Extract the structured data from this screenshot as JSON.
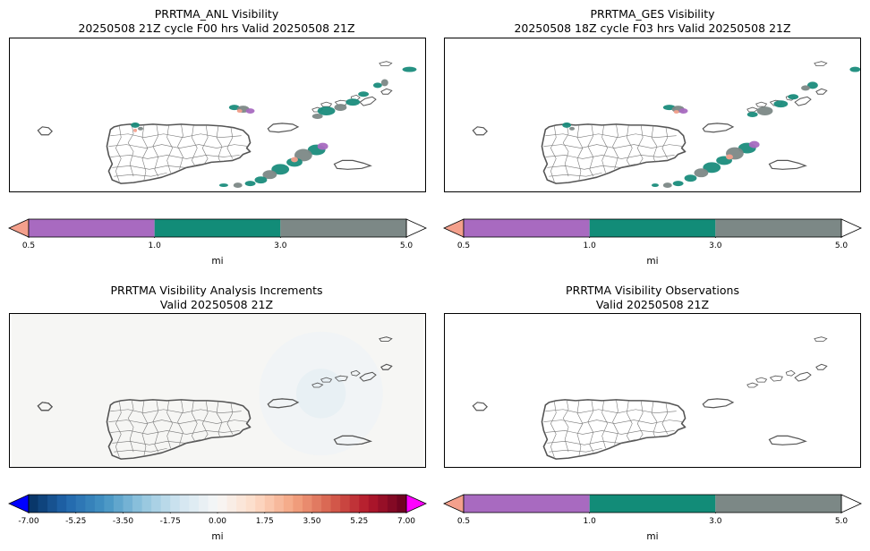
{
  "panels": [
    {
      "title_line1": "PRRTMA_ANL Visibility",
      "title_line2": "20250508 21Z cycle F00 hrs Valid 20250508 21Z",
      "background": "#ffffff",
      "fields": "anl"
    },
    {
      "title_line1": "PRRTMA_GES Visibility",
      "title_line2": "20250508 18Z cycle F03 hrs Valid 20250508 21Z",
      "background": "#ffffff",
      "fields": "ges"
    },
    {
      "title_line1": "PRRTMA Visibility Analysis Increments",
      "title_line2": "Valid 20250508 21Z",
      "background": "#f6f6f4",
      "fields": "inc"
    },
    {
      "title_line1": "PRRTMA Visibility Observations",
      "title_line2": "Valid 20250508 21Z",
      "background": "#ffffff",
      "fields": "obs"
    }
  ],
  "visibility_colorbar": {
    "label": "mi",
    "ticks": [
      "0.5",
      "1.0",
      "3.0",
      "5.0"
    ],
    "under_color": "#f4a08c",
    "over_color": "#ffffff",
    "segment_colors": [
      "#a86ac0",
      "#128c78",
      "#7c8886"
    ]
  },
  "increment_colorbar": {
    "label": "mi",
    "ticks": [
      "-7.00",
      "-5.25",
      "-3.50",
      "-1.75",
      "0.00",
      "1.75",
      "3.50",
      "5.25",
      "7.00"
    ],
    "under_color": "#0000ff",
    "over_color": "#ff00ff",
    "colormap": "RdBu_r"
  },
  "colors": {
    "coastline": "#555555",
    "municipio_lines": "#777777",
    "cloud_teal": "#1a8c7c",
    "cloud_gray": "#7c8886",
    "cloud_purple": "#a86ac0",
    "cloud_salmon": "#f4a08c"
  }
}
